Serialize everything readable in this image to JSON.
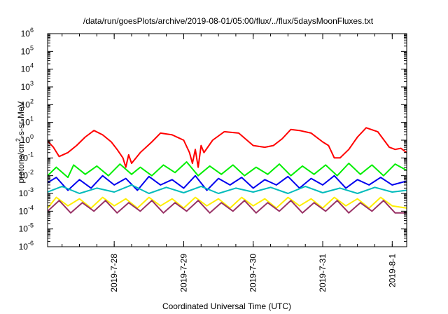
{
  "chart_data": {
    "type": "line",
    "title": "/data/run/goesPlots/archive/2019-08-01/05:00/flux/../flux/5daysMoonFluxes.txt",
    "xlabel": "Coordinated Universal Time (UTC)",
    "ylabel": "protons/cm²-s-sr-MeV",
    "ylabel_parts": {
      "pre": "protons/cm",
      "sup": "2",
      "post": "-s-sr-MeV"
    },
    "y_scale": "log",
    "ylim": [
      1e-06,
      1000000.0
    ],
    "xlim": [
      "2019-07-27 01:00",
      "2019-08-01 05:00"
    ],
    "x_ticks": [
      "2019-7-28",
      "2019-7-29",
      "2019-7-30",
      "2019-7-31",
      "2019-8-1"
    ],
    "y_ticks": [
      {
        "value": 1e-06,
        "base": "10",
        "exp": "-6"
      },
      {
        "value": 1e-05,
        "base": "10",
        "exp": "-5"
      },
      {
        "value": 0.0001,
        "base": "10",
        "exp": "-4"
      },
      {
        "value": 0.001,
        "base": "10",
        "exp": "-3"
      },
      {
        "value": 0.01,
        "base": "10",
        "exp": "-2"
      },
      {
        "value": 0.1,
        "base": "10",
        "exp": "-1"
      },
      {
        "value": 1,
        "base": "10",
        "exp": "0"
      },
      {
        "value": 10,
        "base": "10",
        "exp": "1"
      },
      {
        "value": 100,
        "base": "10",
        "exp": "2"
      },
      {
        "value": 1000,
        "base": "10",
        "exp": "3"
      },
      {
        "value": 10000,
        "base": "10",
        "exp": "4"
      },
      {
        "value": 100000,
        "base": "10",
        "exp": "5"
      },
      {
        "value": 1000000,
        "base": "10",
        "exp": "6"
      }
    ],
    "grid": false,
    "series": [
      {
        "color": "#ff0000",
        "x": [
          "2019-07-27 01:00",
          "2019-07-27 03:00",
          "2019-07-27 05:00",
          "2019-07-27 08:00",
          "2019-07-27 11:00",
          "2019-07-27 14:00",
          "2019-07-27 17:00",
          "2019-07-27 20:00",
          "2019-07-27 23:00",
          "2019-07-28 01:00",
          "2019-07-28 03:00",
          "2019-07-28 04:00",
          "2019-07-28 05:00",
          "2019-07-28 06:00",
          "2019-07-28 09:00",
          "2019-07-28 13:00",
          "2019-07-28 16:00",
          "2019-07-28 20:00",
          "2019-07-29 00:00",
          "2019-07-29 02:00",
          "2019-07-29 03:00",
          "2019-07-29 04:00",
          "2019-07-29 05:00",
          "2019-07-29 06:00",
          "2019-07-29 07:00",
          "2019-07-29 10:00",
          "2019-07-29 14:00",
          "2019-07-29 19:00",
          "2019-07-30 00:00",
          "2019-07-30 04:00",
          "2019-07-30 07:00",
          "2019-07-30 10:00",
          "2019-07-30 13:00",
          "2019-07-30 16:00",
          "2019-07-30 20:00",
          "2019-07-31 00:00",
          "2019-07-31 02:00",
          "2019-07-31 04:00",
          "2019-07-31 06:00",
          "2019-07-31 09:00",
          "2019-07-31 12:00",
          "2019-07-31 15:00",
          "2019-07-31 19:00",
          "2019-07-31 23:00",
          "2019-08-01 01:00",
          "2019-08-01 03:00",
          "2019-08-01 05:00"
        ],
        "values": [
          0.9,
          0.4,
          0.12,
          0.2,
          0.5,
          1.5,
          3.5,
          2.0,
          0.8,
          0.3,
          0.1,
          0.03,
          0.15,
          0.05,
          0.2,
          0.8,
          2.5,
          2.0,
          1.0,
          0.2,
          0.05,
          0.3,
          0.03,
          0.5,
          0.2,
          1.0,
          3.0,
          2.5,
          0.5,
          0.4,
          0.5,
          1.2,
          4.0,
          3.5,
          2.5,
          0.8,
          0.5,
          0.1,
          0.1,
          0.3,
          1.5,
          5.0,
          3.0,
          0.4,
          0.3,
          0.35,
          0.2
        ]
      },
      {
        "color": "#00ee00",
        "x": [
          "2019-07-27 01:00",
          "2019-07-27 04:00",
          "2019-07-27 08:00",
          "2019-07-27 10:00",
          "2019-07-27 14:00",
          "2019-07-27 18:00",
          "2019-07-27 22:00",
          "2019-07-28 02:00",
          "2019-07-28 06:00",
          "2019-07-28 09:00",
          "2019-07-28 13:00",
          "2019-07-28 17:00",
          "2019-07-28 21:00",
          "2019-07-29 01:00",
          "2019-07-29 05:00",
          "2019-07-29 09:00",
          "2019-07-29 13:00",
          "2019-07-29 17:00",
          "2019-07-29 21:00",
          "2019-07-30 01:00",
          "2019-07-30 05:00",
          "2019-07-30 09:00",
          "2019-07-30 13:00",
          "2019-07-30 17:00",
          "2019-07-30 21:00",
          "2019-07-31 01:00",
          "2019-07-31 05:00",
          "2019-07-31 09:00",
          "2019-07-31 13:00",
          "2019-07-31 17:00",
          "2019-07-31 21:00",
          "2019-08-01 01:00",
          "2019-08-01 05:00"
        ],
        "values": [
          0.01,
          0.03,
          0.008,
          0.04,
          0.012,
          0.035,
          0.01,
          0.045,
          0.012,
          0.03,
          0.01,
          0.04,
          0.015,
          0.06,
          0.01,
          0.035,
          0.012,
          0.04,
          0.01,
          0.03,
          0.012,
          0.045,
          0.01,
          0.035,
          0.012,
          0.04,
          0.01,
          0.05,
          0.012,
          0.04,
          0.01,
          0.045,
          0.02
        ]
      },
      {
        "color": "#0000ee",
        "x": [
          "2019-07-27 01:00",
          "2019-07-27 04:00",
          "2019-07-27 08:00",
          "2019-07-27 12:00",
          "2019-07-27 16:00",
          "2019-07-27 20:00",
          "2019-07-28 00:00",
          "2019-07-28 04:00",
          "2019-07-28 08:00",
          "2019-07-28 12:00",
          "2019-07-28 16:00",
          "2019-07-28 20:00",
          "2019-07-29 00:00",
          "2019-07-29 04:00",
          "2019-07-29 08:00",
          "2019-07-29 12:00",
          "2019-07-29 16:00",
          "2019-07-29 20:00",
          "2019-07-30 00:00",
          "2019-07-30 04:00",
          "2019-07-30 08:00",
          "2019-07-30 12:00",
          "2019-07-30 16:00",
          "2019-07-30 20:00",
          "2019-07-31 00:00",
          "2019-07-31 04:00",
          "2019-07-31 08:00",
          "2019-07-31 12:00",
          "2019-07-31 16:00",
          "2019-07-31 20:00",
          "2019-08-01 00:00",
          "2019-08-01 05:00"
        ],
        "values": [
          0.004,
          0.008,
          0.0015,
          0.006,
          0.002,
          0.01,
          0.003,
          0.007,
          0.0015,
          0.009,
          0.003,
          0.006,
          0.002,
          0.01,
          0.0015,
          0.007,
          0.003,
          0.008,
          0.002,
          0.006,
          0.003,
          0.009,
          0.002,
          0.007,
          0.003,
          0.01,
          0.002,
          0.006,
          0.003,
          0.008,
          0.003,
          0.005
        ]
      },
      {
        "color": "#00bbbb",
        "x": [
          "2019-07-27 01:00",
          "2019-07-27 06:00",
          "2019-07-27 12:00",
          "2019-07-27 18:00",
          "2019-07-28 00:00",
          "2019-07-28 06:00",
          "2019-07-28 12:00",
          "2019-07-28 18:00",
          "2019-07-29 00:00",
          "2019-07-29 06:00",
          "2019-07-29 12:00",
          "2019-07-29 18:00",
          "2019-07-30 00:00",
          "2019-07-30 06:00",
          "2019-07-30 12:00",
          "2019-07-30 18:00",
          "2019-07-31 00:00",
          "2019-07-31 06:00",
          "2019-07-31 12:00",
          "2019-07-31 18:00",
          "2019-08-01 00:00",
          "2019-08-01 05:00"
        ],
        "values": [
          0.0012,
          0.0025,
          0.001,
          0.002,
          0.0012,
          0.003,
          0.001,
          0.0022,
          0.0011,
          0.0025,
          0.001,
          0.002,
          0.0012,
          0.0022,
          0.001,
          0.0025,
          0.0011,
          0.002,
          0.001,
          0.0022,
          0.0012,
          0.0015
        ]
      },
      {
        "color": "#ffee00",
        "x": [
          "2019-07-27 01:00",
          "2019-07-27 04:00",
          "2019-07-27 08:00",
          "2019-07-27 12:00",
          "2019-07-27 16:00",
          "2019-07-27 20:00",
          "2019-07-28 00:00",
          "2019-07-28 04:00",
          "2019-07-28 08:00",
          "2019-07-28 12:00",
          "2019-07-28 16:00",
          "2019-07-28 20:00",
          "2019-07-29 00:00",
          "2019-07-29 04:00",
          "2019-07-29 08:00",
          "2019-07-29 12:00",
          "2019-07-29 16:00",
          "2019-07-29 20:00",
          "2019-07-30 00:00",
          "2019-07-30 04:00",
          "2019-07-30 08:00",
          "2019-07-30 12:00",
          "2019-07-30 16:00",
          "2019-07-30 20:00",
          "2019-07-31 00:00",
          "2019-07-31 04:00",
          "2019-07-31 08:00",
          "2019-07-31 12:00",
          "2019-07-31 16:00",
          "2019-07-31 20:00",
          "2019-08-01 00:00",
          "2019-08-01 05:00"
        ],
        "values": [
          0.00015,
          0.0006,
          0.0002,
          0.0005,
          0.00015,
          0.0006,
          0.0002,
          0.0005,
          0.00015,
          0.0006,
          0.0002,
          0.0005,
          0.00015,
          0.0006,
          0.0002,
          0.0005,
          0.00015,
          0.0006,
          0.0002,
          0.0005,
          0.00015,
          0.0006,
          0.0002,
          0.0005,
          0.00015,
          0.0006,
          0.0002,
          0.0005,
          0.00015,
          0.0006,
          0.0002,
          0.00015
        ]
      },
      {
        "color": "#993366",
        "x": [
          "2019-07-27 01:00",
          "2019-07-27 05:00",
          "2019-07-27 09:00",
          "2019-07-27 13:00",
          "2019-07-27 17:00",
          "2019-07-27 21:00",
          "2019-07-28 01:00",
          "2019-07-28 05:00",
          "2019-07-28 09:00",
          "2019-07-28 13:00",
          "2019-07-28 17:00",
          "2019-07-28 21:00",
          "2019-07-29 01:00",
          "2019-07-29 05:00",
          "2019-07-29 09:00",
          "2019-07-29 13:00",
          "2019-07-29 17:00",
          "2019-07-29 21:00",
          "2019-07-30 01:00",
          "2019-07-30 05:00",
          "2019-07-30 09:00",
          "2019-07-30 13:00",
          "2019-07-30 17:00",
          "2019-07-30 21:00",
          "2019-07-31 01:00",
          "2019-07-31 05:00",
          "2019-07-31 09:00",
          "2019-07-31 13:00",
          "2019-07-31 17:00",
          "2019-07-31 21:00",
          "2019-08-01 01:00",
          "2019-08-01 05:00"
        ],
        "values": [
          0.0001,
          0.0004,
          8e-05,
          0.0003,
          0.0001,
          0.0004,
          8e-05,
          0.0003,
          0.0001,
          0.0004,
          8e-05,
          0.0003,
          0.0001,
          0.0004,
          8e-05,
          0.0003,
          0.0001,
          0.0004,
          8e-05,
          0.0003,
          0.0001,
          0.0004,
          8e-05,
          0.0003,
          0.0001,
          0.0004,
          8e-05,
          0.0003,
          0.0001,
          0.0004,
          8e-05,
          8e-05
        ]
      }
    ]
  }
}
